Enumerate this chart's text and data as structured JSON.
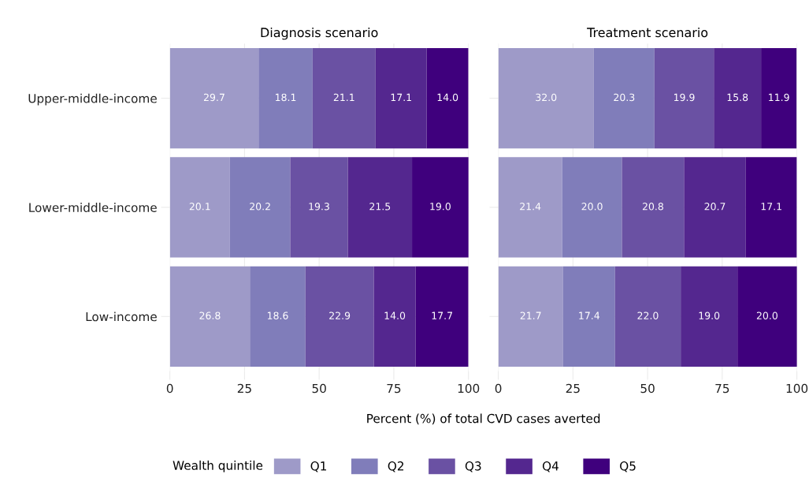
{
  "chart_data": [
    {
      "type": "bar",
      "orientation": "horizontal",
      "stacked": true,
      "title": "Diagnosis scenario",
      "xlabel": "Percent (%) of total CVD cases averted",
      "categories": [
        "Upper-middle-income",
        "Lower-middle-income",
        "Low-income"
      ],
      "series": [
        {
          "name": "Q1",
          "color": "#9e9ac8",
          "values": [
            29.7,
            20.1,
            26.8
          ],
          "value_labels": [
            "29.7",
            "20.1",
            "26.8"
          ]
        },
        {
          "name": "Q2",
          "color": "#807dba",
          "values": [
            18.1,
            20.2,
            18.6
          ],
          "value_labels": [
            "18.1",
            "20.2",
            "18.6"
          ]
        },
        {
          "name": "Q3",
          "color": "#6a51a3",
          "values": [
            21.1,
            19.3,
            22.9
          ],
          "value_labels": [
            "21.1",
            "19.3",
            "22.9"
          ]
        },
        {
          "name": "Q4",
          "color": "#54278f",
          "values": [
            17.1,
            21.5,
            14.0
          ],
          "value_labels": [
            "17.1",
            "21.5",
            "14.0"
          ]
        },
        {
          "name": "Q5",
          "color": "#3f007d",
          "values": [
            14.0,
            19.0,
            17.7
          ],
          "value_labels": [
            "14.0",
            "19.0",
            "17.7"
          ]
        }
      ],
      "xlim": [
        0,
        100
      ],
      "xticks": [
        0,
        25,
        50,
        75,
        100
      ],
      "grid": true,
      "legend": "bottom",
      "legend_title": "Wealth quintile"
    },
    {
      "type": "bar",
      "orientation": "horizontal",
      "stacked": true,
      "title": "Treatment scenario",
      "categories": [
        null,
        null,
        null
      ],
      "series": [
        {
          "color": "#9e9ac8",
          "values": [
            32.0,
            21.4,
            21.7
          ],
          "value_labels": [
            "32.0",
            "21.4",
            "21.7"
          ]
        },
        {
          "color": "#807dba",
          "values": [
            20.3,
            20.0,
            17.4
          ],
          "value_labels": [
            "20.3",
            "20.0",
            "17.4"
          ]
        },
        {
          "color": "#6a51a3",
          "values": [
            19.9,
            20.8,
            22.0
          ],
          "value_labels": [
            "19.9",
            "20.8",
            "22.0"
          ]
        },
        {
          "color": "#54278f",
          "values": [
            15.8,
            20.7,
            19.0
          ],
          "value_labels": [
            "15.8",
            "20.7",
            "19.0"
          ]
        },
        {
          "color": "#3f007d",
          "values": [
            11.9,
            17.1,
            20.0
          ],
          "value_labels": [
            "11.9",
            "17.1",
            "20.0"
          ]
        }
      ],
      "xlim": [
        0,
        100
      ],
      "xticks": [
        0,
        25,
        50,
        75,
        100
      ],
      "grid": true,
      "tick_labels": "x"
    }
  ]
}
